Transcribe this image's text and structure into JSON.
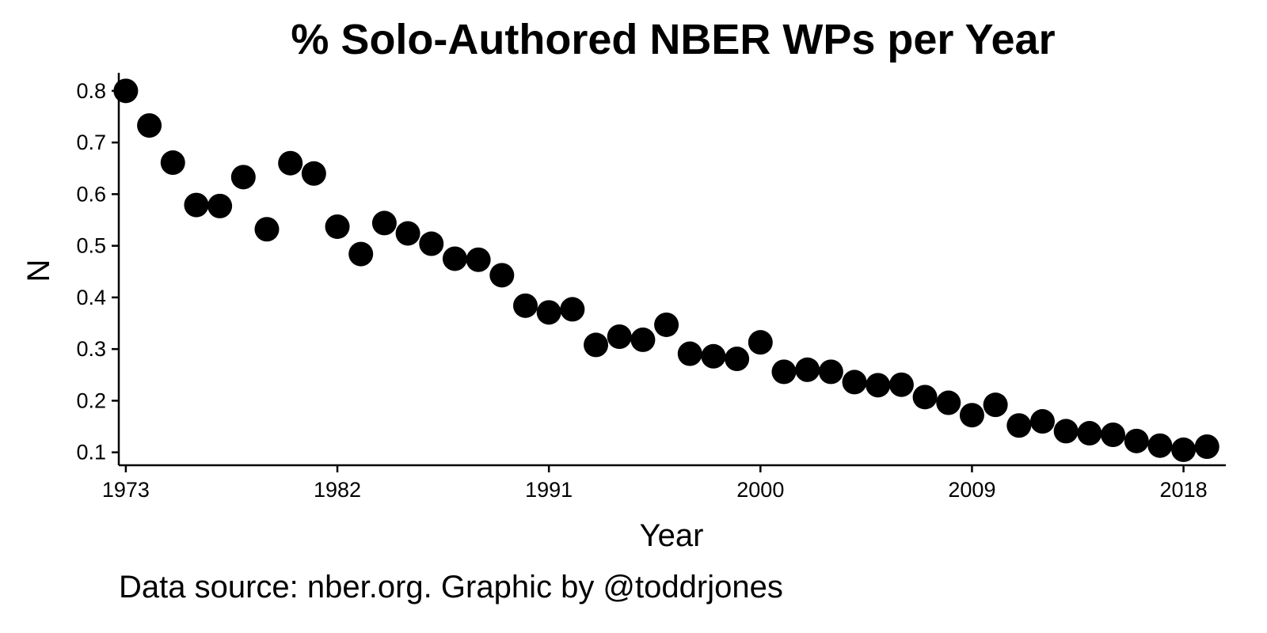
{
  "chart_data": {
    "type": "scatter",
    "title": "% Solo-Authored NBER WPs per Year",
    "xlabel": "Year",
    "ylabel": "N",
    "caption": "Data source: nber.org. Graphic by @toddrjones",
    "xlim": [
      1972.7,
      2019.8
    ],
    "ylim": [
      0.075,
      0.835
    ],
    "x_ticks": [
      1973,
      1982,
      1991,
      2000,
      2009,
      2018
    ],
    "y_ticks": [
      0.1,
      0.2,
      0.3,
      0.4,
      0.5,
      0.6,
      0.7,
      0.8
    ],
    "y_tick_labels": [
      "0.1",
      "0.2",
      "0.3",
      "0.4",
      "0.5",
      "0.6",
      "0.7",
      "0.8"
    ],
    "grid": false,
    "legend": "none",
    "point_color": "#000000",
    "x": [
      1973,
      1974,
      1975,
      1976,
      1977,
      1978,
      1979,
      1980,
      1981,
      1982,
      1983,
      1984,
      1985,
      1986,
      1987,
      1988,
      1989,
      1990,
      1991,
      1992,
      1993,
      1994,
      1995,
      1996,
      1997,
      1998,
      1999,
      2000,
      2001,
      2002,
      2003,
      2004,
      2005,
      2006,
      2007,
      2008,
      2009,
      2010,
      2011,
      2012,
      2013,
      2014,
      2015,
      2016,
      2017,
      2018,
      2019
    ],
    "y": [
      0.8,
      0.733,
      0.661,
      0.579,
      0.577,
      0.633,
      0.532,
      0.66,
      0.64,
      0.537,
      0.484,
      0.544,
      0.524,
      0.504,
      0.475,
      0.473,
      0.443,
      0.384,
      0.371,
      0.377,
      0.308,
      0.324,
      0.318,
      0.347,
      0.291,
      0.286,
      0.281,
      0.313,
      0.256,
      0.26,
      0.256,
      0.236,
      0.23,
      0.231,
      0.207,
      0.196,
      0.172,
      0.192,
      0.152,
      0.16,
      0.141,
      0.137,
      0.134,
      0.122,
      0.113,
      0.105,
      0.111
    ]
  }
}
